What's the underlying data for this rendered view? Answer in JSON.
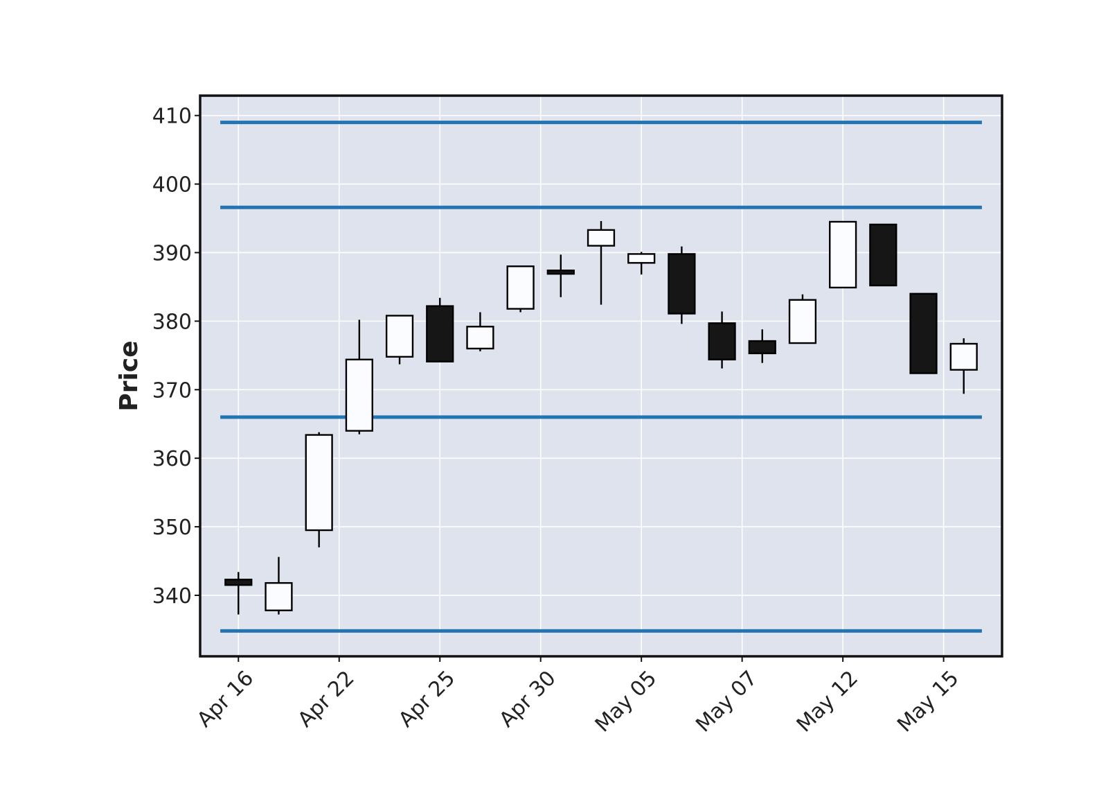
{
  "chart_data": {
    "type": "candlestick",
    "title": "",
    "xlabel": "",
    "ylabel": "Price",
    "ylim": [
      331.1,
      412.9
    ],
    "yticks": [
      340,
      350,
      360,
      370,
      380,
      390,
      400,
      410
    ],
    "grid": true,
    "xtick_labels": [
      {
        "index": 0,
        "label": "Apr 16"
      },
      {
        "index": 2.5,
        "label": "Apr 22"
      },
      {
        "index": 5,
        "label": "Apr 25"
      },
      {
        "index": 7.5,
        "label": "Apr 30"
      },
      {
        "index": 10,
        "label": "May 05"
      },
      {
        "index": 12.5,
        "label": "May 07"
      },
      {
        "index": 15,
        "label": "May 12"
      },
      {
        "index": 17.5,
        "label": "May 15"
      }
    ],
    "candles": [
      {
        "open": 342.3,
        "high": 343.4,
        "low": 337.2,
        "close": 341.5
      },
      {
        "open": 337.8,
        "high": 345.6,
        "low": 337.2,
        "close": 341.8
      },
      {
        "open": 349.5,
        "high": 363.8,
        "low": 347.0,
        "close": 363.4
      },
      {
        "open": 364.0,
        "high": 380.2,
        "low": 363.5,
        "close": 374.4
      },
      {
        "open": 374.8,
        "high": 380.8,
        "low": 373.7,
        "close": 380.8
      },
      {
        "open": 382.2,
        "high": 383.4,
        "low": 374.1,
        "close": 374.1
      },
      {
        "open": 376.0,
        "high": 381.3,
        "low": 375.6,
        "close": 379.2
      },
      {
        "open": 381.8,
        "high": 388.0,
        "low": 381.3,
        "close": 388.0
      },
      {
        "open": 387.4,
        "high": 389.7,
        "low": 383.5,
        "close": 386.9
      },
      {
        "open": 391.0,
        "high": 394.6,
        "low": 382.4,
        "close": 393.3
      },
      {
        "open": 388.5,
        "high": 390.1,
        "low": 386.8,
        "close": 389.8
      },
      {
        "open": 389.8,
        "high": 390.9,
        "low": 379.6,
        "close": 381.1
      },
      {
        "open": 379.7,
        "high": 381.4,
        "low": 373.1,
        "close": 374.4
      },
      {
        "open": 377.1,
        "high": 378.8,
        "low": 373.9,
        "close": 375.3
      },
      {
        "open": 376.8,
        "high": 383.9,
        "low": 376.8,
        "close": 383.1
      },
      {
        "open": 384.9,
        "high": 394.5,
        "low": 384.9,
        "close": 394.5
      },
      {
        "open": 394.1,
        "high": 394.1,
        "low": 385.1,
        "close": 385.2
      },
      {
        "open": 384.0,
        "high": 384.0,
        "low": 372.4,
        "close": 372.4
      },
      {
        "open": 372.9,
        "high": 377.5,
        "low": 369.4,
        "close": 376.7
      }
    ],
    "hlines": [
      409.0,
      396.6,
      366.0,
      334.8
    ],
    "colors": {
      "background": "#dee3ee",
      "grid": "#ffffff",
      "frame": "#111111",
      "up_fill": "#fafcff",
      "down_fill": "#161616",
      "candle_edge": "#000000",
      "hline": "#2474b2"
    }
  }
}
